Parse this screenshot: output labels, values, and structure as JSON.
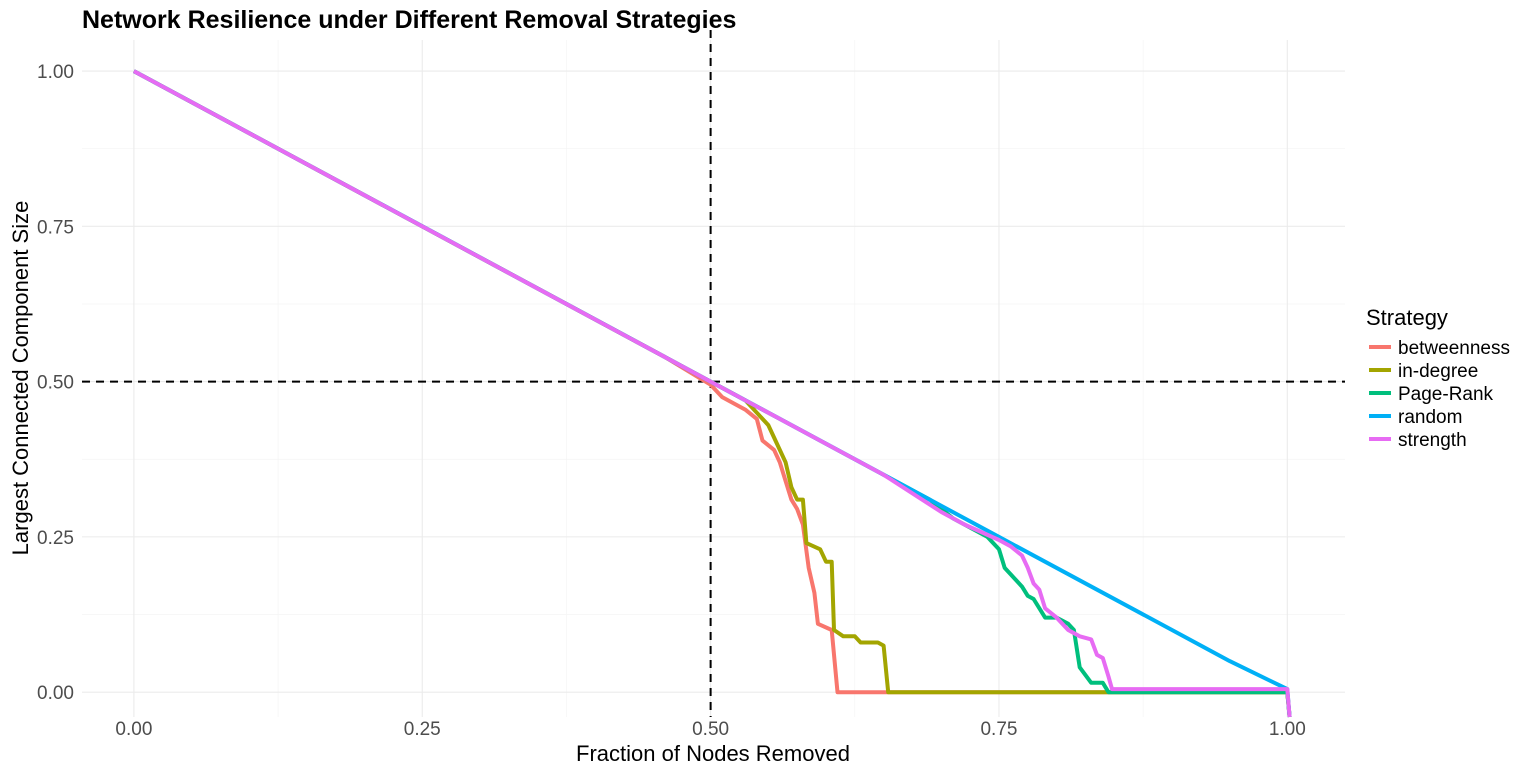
{
  "chart_data": {
    "type": "line",
    "title": "Network Resilience under Different Removal Strategies",
    "xlabel": "Fraction of Nodes Removed",
    "ylabel": "Largest Connected Component Size",
    "xlim": [
      -0.045,
      1.05
    ],
    "ylim": [
      -0.04,
      1.05
    ],
    "x_ticks": [
      0.0,
      0.25,
      0.5,
      0.75,
      1.0
    ],
    "x_tick_labels": [
      "0.00",
      "0.25",
      "0.50",
      "0.75",
      "1.00"
    ],
    "y_ticks": [
      0.0,
      0.25,
      0.5,
      0.75,
      1.0
    ],
    "y_tick_labels": [
      "0.00",
      "0.25",
      "0.50",
      "0.75",
      "1.00"
    ],
    "grid": true,
    "reference_lines": {
      "vertical_x": 0.5,
      "horizontal_y": 0.5,
      "style": "dashed"
    },
    "legend": {
      "title": "Strategy",
      "position": "right"
    },
    "series": [
      {
        "name": "betweenness",
        "color": "#F8766D",
        "points": [
          [
            0,
            1.0
          ],
          [
            0.46,
            0.54
          ],
          [
            0.5,
            0.495
          ],
          [
            0.51,
            0.475
          ],
          [
            0.53,
            0.455
          ],
          [
            0.54,
            0.44
          ],
          [
            0.545,
            0.405
          ],
          [
            0.555,
            0.39
          ],
          [
            0.56,
            0.37
          ],
          [
            0.565,
            0.34
          ],
          [
            0.57,
            0.31
          ],
          [
            0.575,
            0.295
          ],
          [
            0.58,
            0.27
          ],
          [
            0.585,
            0.2
          ],
          [
            0.59,
            0.16
          ],
          [
            0.593,
            0.11
          ],
          [
            0.605,
            0.1
          ],
          [
            0.61,
            0.0
          ],
          [
            0.65,
            0.0
          ],
          [
            1.0,
            0.0
          ],
          [
            1.002,
            -0.04
          ]
        ]
      },
      {
        "name": "in-degree",
        "color": "#A3A500",
        "points": [
          [
            0,
            1.0
          ],
          [
            0.47,
            0.53
          ],
          [
            0.5,
            0.5
          ],
          [
            0.52,
            0.48
          ],
          [
            0.53,
            0.47
          ],
          [
            0.54,
            0.45
          ],
          [
            0.55,
            0.43
          ],
          [
            0.56,
            0.39
          ],
          [
            0.565,
            0.37
          ],
          [
            0.57,
            0.33
          ],
          [
            0.575,
            0.31
          ],
          [
            0.58,
            0.31
          ],
          [
            0.583,
            0.24
          ],
          [
            0.595,
            0.23
          ],
          [
            0.6,
            0.21
          ],
          [
            0.605,
            0.21
          ],
          [
            0.607,
            0.1
          ],
          [
            0.615,
            0.09
          ],
          [
            0.625,
            0.09
          ],
          [
            0.63,
            0.08
          ],
          [
            0.645,
            0.08
          ],
          [
            0.65,
            0.075
          ],
          [
            0.654,
            0.0
          ],
          [
            0.75,
            0.0
          ],
          [
            1.0,
            0.0
          ],
          [
            1.002,
            -0.04
          ]
        ]
      },
      {
        "name": "Page-Rank",
        "color": "#00BF7D",
        "points": [
          [
            0,
            1.0
          ],
          [
            0.56,
            0.44
          ],
          [
            0.6,
            0.4
          ],
          [
            0.65,
            0.35
          ],
          [
            0.69,
            0.31
          ],
          [
            0.7,
            0.295
          ],
          [
            0.71,
            0.28
          ],
          [
            0.72,
            0.27
          ],
          [
            0.74,
            0.25
          ],
          [
            0.75,
            0.23
          ],
          [
            0.755,
            0.2
          ],
          [
            0.76,
            0.19
          ],
          [
            0.77,
            0.17
          ],
          [
            0.775,
            0.155
          ],
          [
            0.78,
            0.15
          ],
          [
            0.79,
            0.12
          ],
          [
            0.8,
            0.12
          ],
          [
            0.81,
            0.11
          ],
          [
            0.815,
            0.1
          ],
          [
            0.82,
            0.04
          ],
          [
            0.83,
            0.015
          ],
          [
            0.84,
            0.015
          ],
          [
            0.845,
            0.0
          ],
          [
            0.9,
            0.0
          ],
          [
            1.0,
            0.0
          ],
          [
            1.002,
            -0.04
          ]
        ]
      },
      {
        "name": "random",
        "color": "#00B0F6",
        "points": [
          [
            0,
            1.0
          ],
          [
            0.25,
            0.75
          ],
          [
            0.5,
            0.5
          ],
          [
            0.75,
            0.25
          ],
          [
            0.9,
            0.1
          ],
          [
            0.95,
            0.05
          ],
          [
            1.0,
            0.005
          ],
          [
            1.002,
            -0.04
          ]
        ]
      },
      {
        "name": "strength",
        "color": "#E76BF3",
        "points": [
          [
            0,
            1.0
          ],
          [
            0.56,
            0.44
          ],
          [
            0.6,
            0.4
          ],
          [
            0.65,
            0.35
          ],
          [
            0.7,
            0.29
          ],
          [
            0.72,
            0.27
          ],
          [
            0.75,
            0.245
          ],
          [
            0.76,
            0.235
          ],
          [
            0.77,
            0.22
          ],
          [
            0.775,
            0.2
          ],
          [
            0.78,
            0.175
          ],
          [
            0.785,
            0.165
          ],
          [
            0.79,
            0.135
          ],
          [
            0.8,
            0.12
          ],
          [
            0.81,
            0.1
          ],
          [
            0.82,
            0.09
          ],
          [
            0.83,
            0.085
          ],
          [
            0.835,
            0.06
          ],
          [
            0.84,
            0.055
          ],
          [
            0.845,
            0.025
          ],
          [
            0.848,
            0.005
          ],
          [
            0.9,
            0.005
          ],
          [
            1.0,
            0.005
          ],
          [
            1.002,
            -0.04
          ]
        ]
      }
    ]
  }
}
